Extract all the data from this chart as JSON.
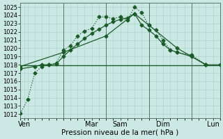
{
  "xlabel": "Pression niveau de la mer( hPa )",
  "bg_color": "#cce8e4",
  "grid_color": "#aad4cc",
  "line_color": "#1a5c28",
  "ylim": [
    1011.5,
    1025.5
  ],
  "yticks": [
    1012,
    1013,
    1014,
    1015,
    1016,
    1017,
    1018,
    1019,
    1020,
    1021,
    1022,
    1023,
    1024,
    1025
  ],
  "xlim": [
    0,
    28
  ],
  "xtick_positions": [
    0.5,
    10,
    14,
    20,
    27
  ],
  "xtick_labels": [
    "Ven",
    "Mar",
    "Sam",
    "Dim",
    "Lun"
  ],
  "vline_x": [
    6,
    12,
    18,
    24
  ],
  "series1_x": [
    0,
    1,
    2,
    3,
    4,
    5,
    6,
    7,
    8,
    9,
    10,
    11,
    12,
    13,
    14,
    15,
    16,
    17,
    18,
    19,
    20,
    21,
    22,
    24,
    26
  ],
  "series1_y": [
    1012.1,
    1013.8,
    1017.0,
    1017.8,
    1018.0,
    1018.2,
    1019.8,
    1020.3,
    1021.5,
    1022.1,
    1022.4,
    1023.8,
    1023.8,
    1023.6,
    1023.8,
    1023.4,
    1025.0,
    1024.3,
    1022.8,
    1022.2,
    1021.0,
    1019.8,
    1019.5,
    1019.2,
    1018.0
  ],
  "series2_x": [
    0,
    2,
    3,
    4,
    5,
    6,
    7,
    8,
    9,
    10,
    11,
    12,
    13,
    14,
    15,
    16,
    17,
    18,
    19,
    20,
    21,
    22,
    24,
    26
  ],
  "series2_y": [
    1017.5,
    1017.8,
    1018.0,
    1018.0,
    1018.1,
    1019.0,
    1019.8,
    1020.5,
    1021.2,
    1021.8,
    1022.3,
    1022.8,
    1023.2,
    1023.5,
    1023.7,
    1024.2,
    1022.8,
    1022.2,
    1021.5,
    1020.5,
    1019.8,
    1019.5,
    1019.0,
    1018.0
  ],
  "series3_x": [
    0,
    28
  ],
  "series3_y": [
    1017.9,
    1017.9
  ],
  "series4_x": [
    0,
    6,
    12,
    16,
    18,
    22,
    26,
    28
  ],
  "series4_y": [
    1017.8,
    1019.5,
    1021.5,
    1024.2,
    1022.8,
    1020.0,
    1018.0,
    1018.0
  ],
  "marker": "D",
  "markersize": 2.5,
  "linewidth": 0.9,
  "xlabel_fontsize": 7.5,
  "tick_fontsize": 6
}
